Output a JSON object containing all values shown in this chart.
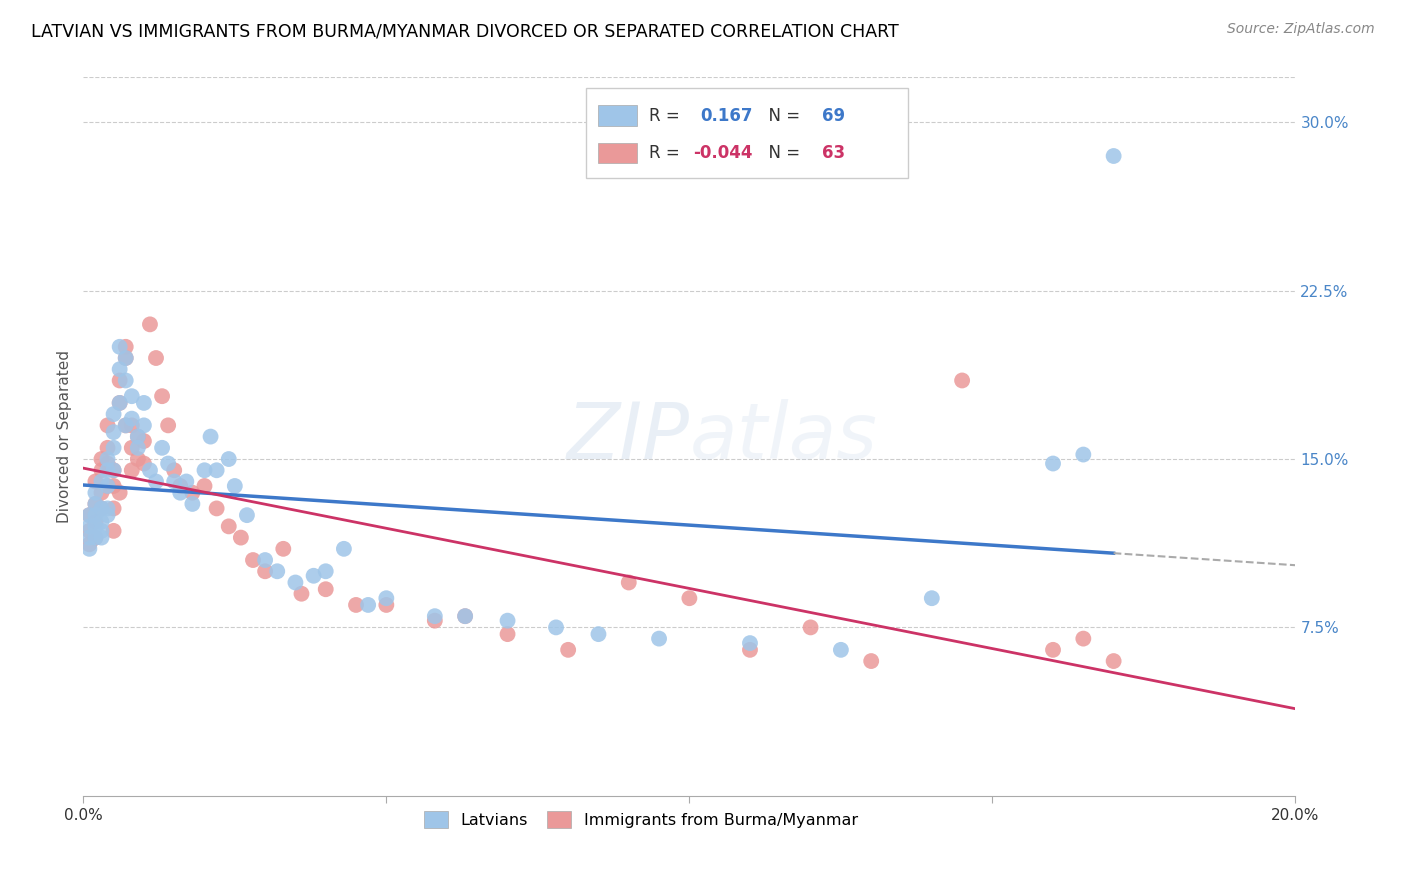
{
  "title": "LATVIAN VS IMMIGRANTS FROM BURMA/MYANMAR DIVORCED OR SEPARATED CORRELATION CHART",
  "source": "Source: ZipAtlas.com",
  "ylabel": "Divorced or Separated",
  "xlim": [
    0.0,
    0.2
  ],
  "ylim": [
    0.0,
    0.32
  ],
  "blue_color": "#9fc5e8",
  "pink_color": "#ea9999",
  "trend_blue": "#3d78c9",
  "trend_pink": "#cc3366",
  "blue_R": "0.167",
  "blue_N": "69",
  "pink_R": "-0.044",
  "pink_N": "63",
  "latvians_x": [
    0.001,
    0.001,
    0.001,
    0.001,
    0.002,
    0.002,
    0.002,
    0.002,
    0.002,
    0.003,
    0.003,
    0.003,
    0.003,
    0.003,
    0.004,
    0.004,
    0.004,
    0.004,
    0.004,
    0.005,
    0.005,
    0.005,
    0.005,
    0.006,
    0.006,
    0.006,
    0.007,
    0.007,
    0.007,
    0.008,
    0.008,
    0.009,
    0.009,
    0.01,
    0.01,
    0.011,
    0.012,
    0.013,
    0.014,
    0.015,
    0.016,
    0.017,
    0.018,
    0.02,
    0.021,
    0.022,
    0.024,
    0.025,
    0.027,
    0.03,
    0.032,
    0.035,
    0.038,
    0.04,
    0.043,
    0.047,
    0.05,
    0.058,
    0.063,
    0.07,
    0.078,
    0.085,
    0.095,
    0.11,
    0.125,
    0.14,
    0.16,
    0.165,
    0.17
  ],
  "latvians_y": [
    0.12,
    0.125,
    0.115,
    0.11,
    0.135,
    0.13,
    0.12,
    0.115,
    0.125,
    0.14,
    0.128,
    0.118,
    0.122,
    0.115,
    0.145,
    0.138,
    0.128,
    0.15,
    0.125,
    0.17,
    0.162,
    0.155,
    0.145,
    0.175,
    0.19,
    0.2,
    0.185,
    0.195,
    0.165,
    0.178,
    0.168,
    0.16,
    0.155,
    0.165,
    0.175,
    0.145,
    0.14,
    0.155,
    0.148,
    0.14,
    0.135,
    0.14,
    0.13,
    0.145,
    0.16,
    0.145,
    0.15,
    0.138,
    0.125,
    0.105,
    0.1,
    0.095,
    0.098,
    0.1,
    0.11,
    0.085,
    0.088,
    0.08,
    0.08,
    0.078,
    0.075,
    0.072,
    0.07,
    0.068,
    0.065,
    0.088,
    0.148,
    0.152,
    0.285
  ],
  "burma_x": [
    0.001,
    0.001,
    0.001,
    0.002,
    0.002,
    0.002,
    0.002,
    0.003,
    0.003,
    0.003,
    0.003,
    0.004,
    0.004,
    0.004,
    0.004,
    0.005,
    0.005,
    0.005,
    0.005,
    0.006,
    0.006,
    0.006,
    0.007,
    0.007,
    0.007,
    0.008,
    0.008,
    0.008,
    0.009,
    0.009,
    0.01,
    0.01,
    0.011,
    0.012,
    0.013,
    0.014,
    0.015,
    0.016,
    0.018,
    0.02,
    0.022,
    0.024,
    0.026,
    0.028,
    0.03,
    0.033,
    0.036,
    0.04,
    0.045,
    0.05,
    0.058,
    0.063,
    0.07,
    0.08,
    0.09,
    0.1,
    0.11,
    0.12,
    0.13,
    0.145,
    0.16,
    0.165,
    0.17
  ],
  "burma_y": [
    0.118,
    0.125,
    0.112,
    0.14,
    0.13,
    0.122,
    0.115,
    0.15,
    0.145,
    0.135,
    0.128,
    0.155,
    0.148,
    0.138,
    0.165,
    0.145,
    0.138,
    0.128,
    0.118,
    0.135,
    0.175,
    0.185,
    0.195,
    0.2,
    0.165,
    0.165,
    0.155,
    0.145,
    0.16,
    0.15,
    0.158,
    0.148,
    0.21,
    0.195,
    0.178,
    0.165,
    0.145,
    0.138,
    0.135,
    0.138,
    0.128,
    0.12,
    0.115,
    0.105,
    0.1,
    0.11,
    0.09,
    0.092,
    0.085,
    0.085,
    0.078,
    0.08,
    0.072,
    0.065,
    0.095,
    0.088,
    0.065,
    0.075,
    0.06,
    0.185,
    0.065,
    0.07,
    0.06
  ]
}
